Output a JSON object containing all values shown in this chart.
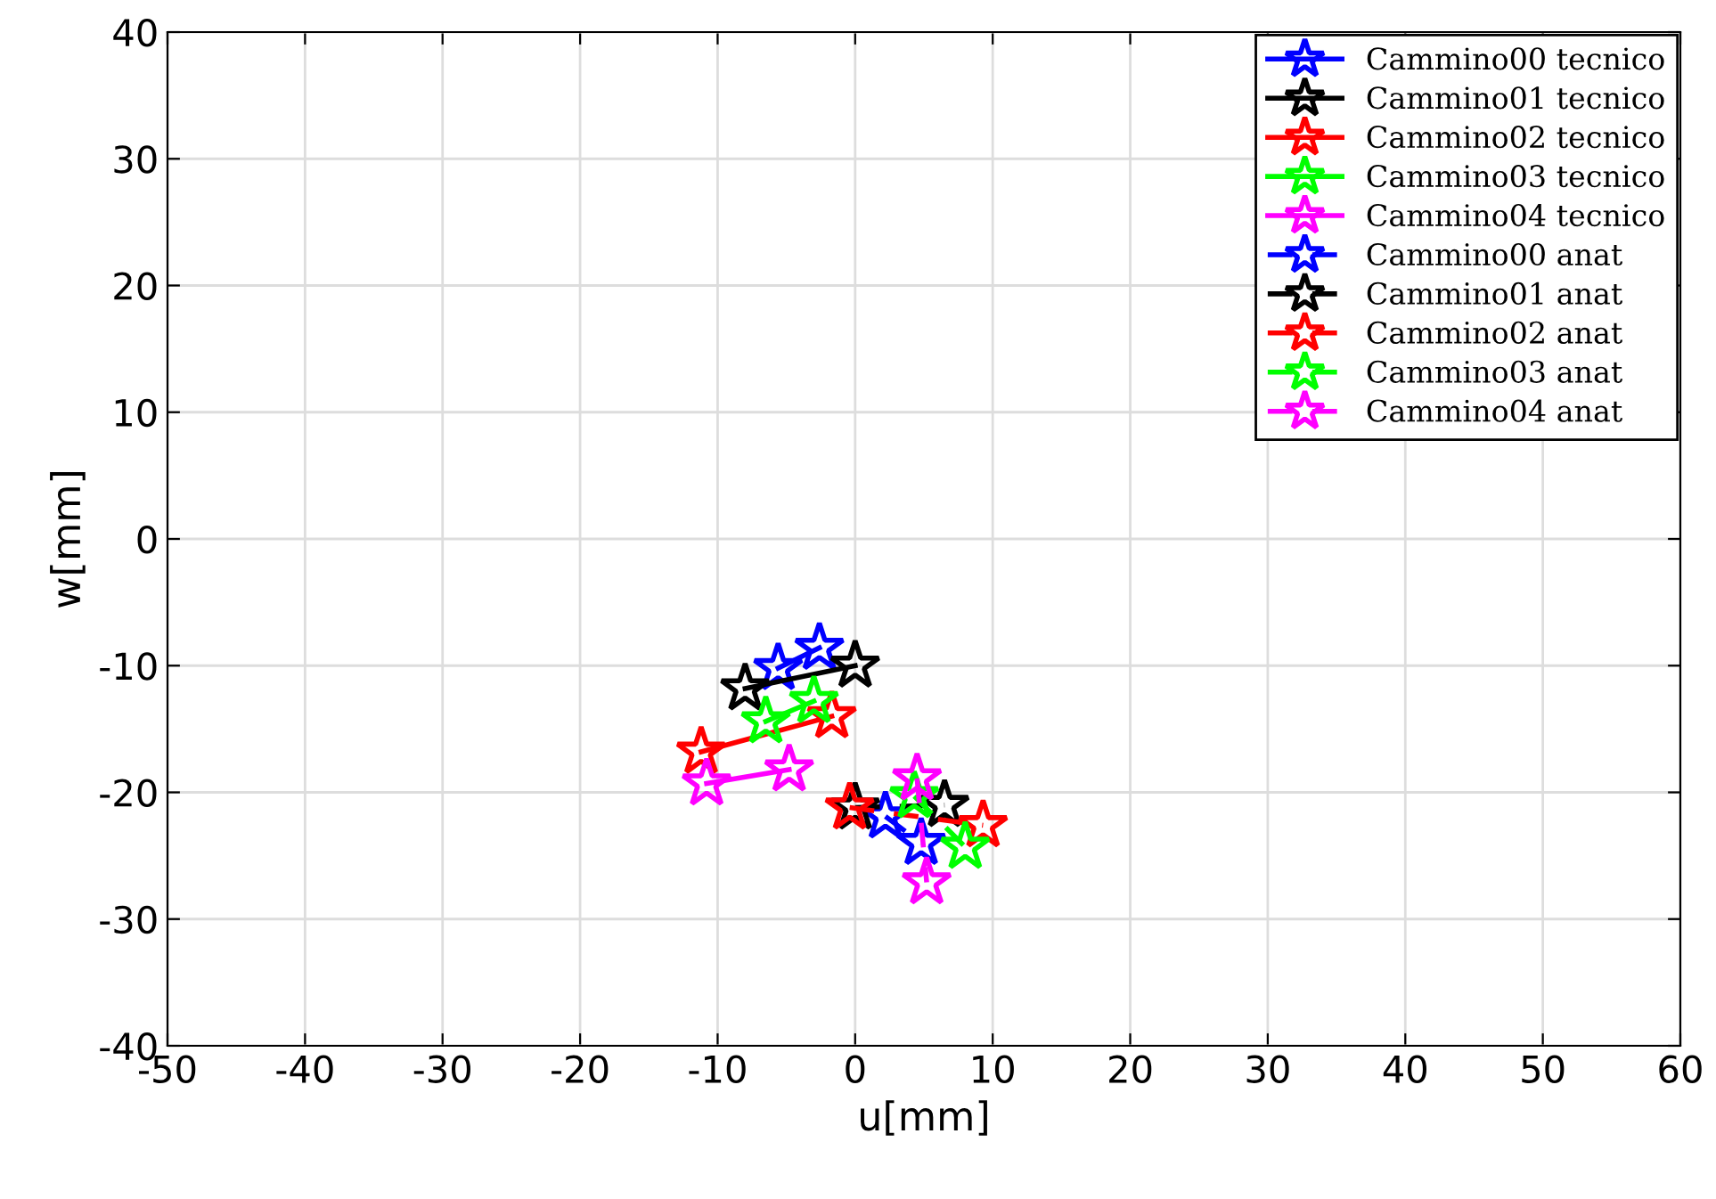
{
  "chart_data": {
    "type": "line",
    "xlabel": "u[mm]",
    "ylabel": "w[mm]",
    "xlim": [
      -50,
      60
    ],
    "ylim": [
      -40,
      40
    ],
    "xticks": [
      -50,
      -40,
      -30,
      -20,
      -10,
      0,
      10,
      20,
      30,
      40,
      50,
      60
    ],
    "yticks": [
      -40,
      -30,
      -20,
      -10,
      0,
      10,
      20,
      30,
      40
    ],
    "grid": true,
    "legend": "top right",
    "marker": "star",
    "series": [
      {
        "name": "Cammino00 tecnico",
        "color": "#0000ff",
        "line_style": "solid",
        "x": [
          -5.6,
          -2.6
        ],
        "values": [
          -10.2,
          -8.6
        ]
      },
      {
        "name": "Cammino01 tecnico",
        "color": "#000000",
        "line_style": "solid",
        "x": [
          -8.0,
          0.0
        ],
        "values": [
          -11.8,
          -10.0
        ]
      },
      {
        "name": "Cammino02 tecnico",
        "color": "#ff0000",
        "line_style": "solid",
        "x": [
          -11.2,
          -1.7
        ],
        "values": [
          -16.8,
          -14.0
        ]
      },
      {
        "name": "Cammino03 tecnico",
        "color": "#00ff00",
        "line_style": "solid",
        "x": [
          -6.5,
          -3.0
        ],
        "values": [
          -14.4,
          -12.8
        ]
      },
      {
        "name": "Cammino04 tecnico",
        "color": "#ff00ff",
        "line_style": "solid",
        "x": [
          -10.8,
          -4.8
        ],
        "values": [
          -19.3,
          -18.2
        ]
      },
      {
        "name": "Cammino00 anat",
        "color": "#0000ff",
        "line_style": "dashed",
        "x": [
          2.2,
          4.8
        ],
        "values": [
          -21.9,
          -24.0
        ]
      },
      {
        "name": "Cammino01 anat",
        "color": "#000000",
        "line_style": "dashed",
        "x": [
          0.0,
          6.5
        ],
        "values": [
          -21.2,
          -21.0
        ]
      },
      {
        "name": "Cammino02 anat",
        "color": "#ff0000",
        "line_style": "dashed",
        "x": [
          -0.4,
          9.3
        ],
        "values": [
          -21.2,
          -22.6
        ]
      },
      {
        "name": "Cammino03 anat",
        "color": "#00ff00",
        "line_style": "dashed",
        "x": [
          4.3,
          8.0
        ],
        "values": [
          -20.3,
          -24.3
        ]
      },
      {
        "name": "Cammino04 anat",
        "color": "#ff00ff",
        "line_style": "dashed",
        "x": [
          4.5,
          5.2
        ],
        "values": [
          -18.9,
          -27.1
        ]
      }
    ]
  }
}
